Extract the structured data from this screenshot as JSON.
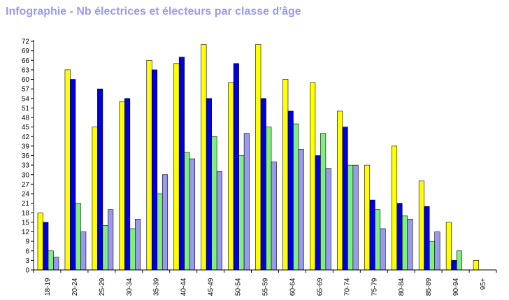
{
  "chart_data": {
    "type": "bar",
    "title": "Infographie - Nb électrices et électeurs par classe d'âge",
    "categories": [
      "18-19",
      "20-24",
      "25-29",
      "30-34",
      "35-39",
      "40-44",
      "45-49",
      "50-54",
      "55-59",
      "60-64",
      "65-69",
      "70-74",
      "75-79",
      "80-84",
      "85-89",
      "90-94",
      "95+"
    ],
    "series": [
      {
        "color": "#ffff00",
        "values": [
          18,
          63,
          45,
          53,
          66,
          65,
          71,
          59,
          71,
          60,
          59,
          50,
          33,
          39,
          28,
          15,
          3
        ]
      },
      {
        "color": "#0000dd",
        "values": [
          15,
          60,
          57,
          54,
          63,
          67,
          54,
          65,
          54,
          50,
          36,
          45,
          22,
          21,
          20,
          3,
          0
        ]
      },
      {
        "color": "#80ee80",
        "values": [
          6,
          21,
          14,
          13,
          24,
          37,
          42,
          36,
          45,
          46,
          43,
          33,
          19,
          17,
          9,
          6,
          0
        ]
      },
      {
        "color": "#9999ee",
        "values": [
          4,
          12,
          19,
          16,
          30,
          35,
          31,
          43,
          34,
          38,
          32,
          33,
          13,
          16,
          12,
          0,
          0
        ]
      }
    ],
    "ylim": [
      0,
      72
    ],
    "yticks": [
      0,
      3,
      6,
      9,
      12,
      15,
      18,
      21,
      24,
      27,
      30,
      33,
      36,
      39,
      42,
      45,
      48,
      51,
      54,
      57,
      60,
      63,
      66,
      69,
      72
    ],
    "grid": false,
    "legend": "none"
  }
}
